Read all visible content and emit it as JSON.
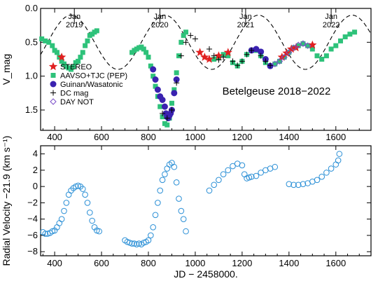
{
  "chart_data": [
    {
      "type": "scatter",
      "title": "Betelgeuse 2018−2022",
      "xlabel": "",
      "ylabel": "V_mag",
      "xlim": [
        340,
        1750
      ],
      "ylim": [
        1.8,
        0.0
      ],
      "y_inverted": true,
      "yticks": [
        "0.0",
        "0.5",
        "1.0",
        "1.5"
      ],
      "xticks": [
        "400",
        "600",
        "800",
        "1000",
        "1200",
        "1400",
        "1600"
      ],
      "year_markers": [
        {
          "label": "Jan\n2019",
          "x": 484
        },
        {
          "label": "Jan\n2020",
          "x": 849
        },
        {
          "label": "Jan\n2021",
          "x": 1215
        },
        {
          "label": "Jan\n2022",
          "x": 1580
        }
      ],
      "legend": {
        "placement": "left-middle",
        "entries": [
          {
            "name": "STEREO",
            "marker": "star",
            "color": "#e02020"
          },
          {
            "name": "AAVSO+TJC (PEP)",
            "marker": "square",
            "color": "#2ec27a"
          },
          {
            "name": "Guinan/Wasatonic",
            "marker": "circle",
            "color": "#3a22b0"
          },
          {
            "name": "DC mag",
            "marker": "plus",
            "color": "#000000"
          },
          {
            "name": "DAY NOT",
            "marker": "diamond-open",
            "color": "#7b4fc9"
          }
        ]
      },
      "model_curve": {
        "style": "dashed",
        "color": "#000000",
        "mean": 0.5,
        "amplitude": 0.4,
        "period_days": 400,
        "phase_peak_x": 470
      },
      "series": [
        {
          "name": "AAVSO+TJC (PEP)",
          "color": "#2ec27a",
          "x": [
            345,
            360,
            375,
            390,
            400,
            410,
            420,
            430,
            440,
            450,
            460,
            470,
            480,
            490,
            500,
            510,
            520,
            530,
            540,
            550,
            560,
            570,
            580,
            730,
            740,
            750,
            760,
            770,
            780,
            790,
            800,
            810,
            820,
            830,
            840,
            850,
            860,
            870,
            880,
            890,
            900,
            910,
            920,
            930,
            940,
            950,
            960,
            1080,
            1100,
            1120,
            1140,
            1160,
            1180,
            1200,
            1220,
            1240,
            1260,
            1280,
            1300,
            1320,
            1340,
            1360,
            1380,
            1400,
            1420,
            1440,
            1460,
            1480,
            1500,
            1520,
            1540,
            1560,
            1580,
            1600,
            1620,
            1640,
            1660,
            1680
          ],
          "y": [
            0.45,
            0.48,
            0.5,
            0.55,
            0.62,
            0.65,
            0.72,
            0.78,
            0.82,
            0.86,
            0.88,
            0.9,
            0.86,
            0.8,
            0.78,
            0.72,
            0.65,
            0.55,
            0.48,
            0.4,
            0.38,
            0.35,
            0.33,
            0.65,
            0.62,
            0.6,
            0.58,
            0.57,
            0.6,
            0.65,
            0.72,
            0.85,
            1.0,
            1.15,
            1.3,
            1.45,
            1.6,
            1.7,
            1.72,
            1.62,
            1.4,
            1.2,
            0.95,
            0.7,
            0.5,
            0.4,
            0.35,
            0.75,
            0.72,
            0.68,
            0.7,
            0.8,
            0.85,
            0.78,
            0.68,
            0.62,
            0.62,
            0.7,
            0.8,
            0.85,
            0.82,
            0.78,
            0.72,
            0.65,
            0.58,
            0.55,
            0.52,
            0.55,
            0.6,
            0.7,
            0.75,
            0.7,
            0.6,
            0.55,
            0.48,
            0.42,
            0.38,
            0.35
          ]
        },
        {
          "name": "Guinan/Wasatonic",
          "color": "#3a22b0",
          "x": [
            820,
            830,
            840,
            850,
            860,
            870,
            875,
            880,
            885,
            890,
            895,
            900,
            910,
            920,
            1240,
            1260,
            1280,
            1300,
            1320
          ],
          "y": [
            0.9,
            1.05,
            1.2,
            1.3,
            1.35,
            1.45,
            1.55,
            1.6,
            1.62,
            1.58,
            1.55,
            1.5,
            1.25,
            1.05,
            0.62,
            0.6,
            0.64,
            0.75,
            0.85
          ]
        },
        {
          "name": "STEREO",
          "color": "#e02020",
          "x": [
            430,
            1020,
            1040,
            1060,
            1100,
            1140,
            1370,
            1390,
            1410,
            1430,
            1500
          ],
          "y": [
            0.72,
            0.65,
            0.72,
            0.75,
            0.7,
            0.65,
            0.72,
            0.66,
            0.6,
            0.58,
            0.54
          ]
        },
        {
          "name": "DC mag",
          "color": "#000000",
          "x": [
            860,
            880,
            900,
            920,
            940,
            960,
            980,
            1000,
            1060,
            1080,
            1100,
            1120,
            1160,
            1180,
            1200,
            1220,
            1240,
            1280,
            1300,
            1320
          ],
          "y": [
            1.55,
            1.62,
            1.5,
            1.1,
            0.7,
            0.5,
            0.4,
            0.45,
            0.6,
            0.7,
            0.76,
            0.72,
            0.78,
            0.84,
            0.78,
            0.68,
            0.62,
            0.7,
            0.78,
            0.84
          ]
        },
        {
          "name": "DAY NOT",
          "color": "#7b4fc9",
          "x": [
            1340,
            1360,
            1380,
            1400,
            1420,
            1440,
            1460,
            1480
          ],
          "y": [
            0.82,
            0.78,
            0.72,
            0.65,
            0.58,
            0.54,
            0.52,
            0.55
          ]
        }
      ]
    },
    {
      "type": "scatter",
      "title": "",
      "xlabel": "JD − 2458000.",
      "ylabel": "Radial Velocity −21.9 (km s⁻¹)",
      "xlim": [
        340,
        1750
      ],
      "ylim": [
        -8.5,
        5
      ],
      "yticks": [
        "4",
        "2",
        "0",
        "−2",
        "−4",
        "−6",
        "−8"
      ],
      "xticks": [
        "400",
        "600",
        "800",
        "1000",
        "1200",
        "1400",
        "1600"
      ],
      "series": [
        {
          "name": "",
          "color": "#2a8fd6",
          "x": [
            350,
            360,
            370,
            380,
            390,
            400,
            410,
            420,
            430,
            440,
            450,
            460,
            470,
            480,
            490,
            500,
            510,
            520,
            530,
            540,
            550,
            560,
            570,
            580,
            590,
            700,
            710,
            720,
            730,
            740,
            750,
            760,
            770,
            780,
            790,
            800,
            810,
            820,
            830,
            840,
            850,
            860,
            870,
            880,
            890,
            900,
            910,
            920,
            930,
            940,
            950,
            960,
            1060,
            1080,
            1100,
            1120,
            1140,
            1160,
            1180,
            1200,
            1210,
            1220,
            1230,
            1240,
            1260,
            1280,
            1300,
            1320,
            1340,
            1400,
            1420,
            1440,
            1460,
            1480,
            1500,
            1520,
            1540,
            1560,
            1580,
            1600,
            1610,
            1615
          ],
          "y": [
            -5.6,
            -5.8,
            -5.8,
            -5.7,
            -5.5,
            -5.4,
            -5.0,
            -4.5,
            -4.0,
            -3.0,
            -2.0,
            -1.0,
            -0.5,
            -0.2,
            0.0,
            0.1,
            0.0,
            -0.3,
            -1.0,
            -2.0,
            -3.2,
            -4.2,
            -5.0,
            -5.4,
            -5.5,
            -6.6,
            -6.8,
            -6.9,
            -7.0,
            -7.0,
            -7.1,
            -7.0,
            -7.1,
            -6.9,
            -6.8,
            -6.6,
            -6.0,
            -5.0,
            -3.5,
            -2.0,
            -0.5,
            0.8,
            1.5,
            2.2,
            2.7,
            2.9,
            2.4,
            0.5,
            -1.5,
            -3.0,
            -4.0,
            -5.5,
            -0.5,
            0.2,
            0.8,
            1.5,
            2.0,
            2.5,
            2.8,
            2.6,
            1.5,
            1.0,
            1.1,
            1.2,
            1.3,
            1.7,
            2.0,
            2.2,
            2.4,
            0.3,
            0.2,
            0.2,
            0.3,
            0.4,
            0.6,
            0.8,
            1.2,
            1.7,
            2.2,
            2.7,
            3.2,
            4.0
          ]
        }
      ]
    }
  ]
}
